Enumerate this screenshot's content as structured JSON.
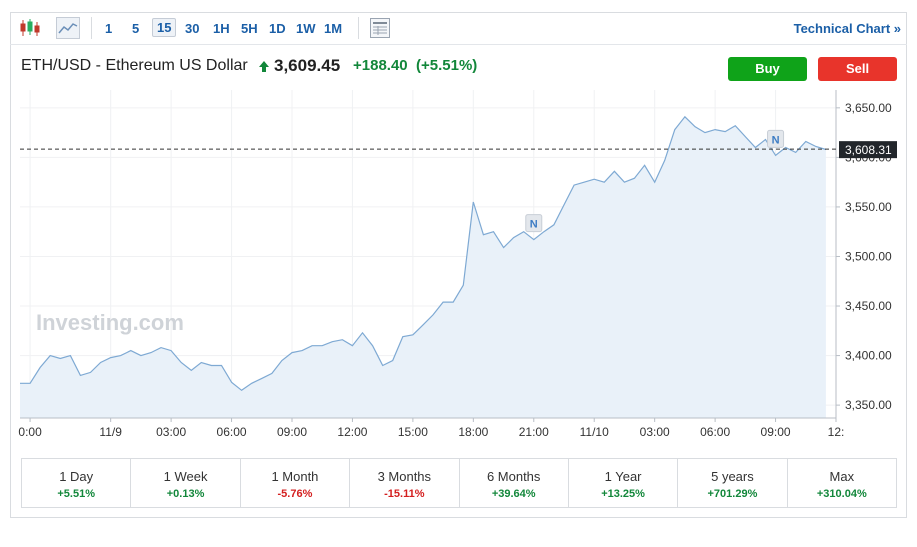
{
  "toolbar": {
    "intervals": [
      "1",
      "5",
      "15",
      "30",
      "1H",
      "5H",
      "1D",
      "1W",
      "1M"
    ],
    "selected": 2,
    "technical_link": "Technical Chart »"
  },
  "header": {
    "title": "ETH/USD - Ethereum US Dollar",
    "price": "3,609.45",
    "change": "+188.40",
    "change_pct": "(+5.51%)",
    "buy": "Buy",
    "sell": "Sell"
  },
  "chart_data": {
    "type": "area",
    "watermark": "Investing.com",
    "x": [
      -0.5,
      0,
      0.5,
      1,
      1.5,
      2,
      2.5,
      3,
      3.5,
      4,
      4.5,
      5,
      5.5,
      6,
      6.5,
      7,
      7.5,
      8,
      8.5,
      9,
      9.5,
      10,
      10.5,
      11,
      11.5,
      12,
      12.5,
      13,
      13.5,
      14,
      14.5,
      15,
      15.5,
      16,
      16.5,
      17,
      17.5,
      18,
      18.5,
      19,
      19.5,
      20,
      20.5,
      21,
      21.5,
      22,
      22.5,
      23,
      23.5,
      24,
      24.5,
      25,
      25.5,
      26,
      26.5,
      27,
      27.5,
      28,
      28.5,
      29,
      29.5,
      30,
      30.5,
      31,
      31.5,
      32,
      32.5,
      33,
      33.5,
      34,
      34.5,
      35,
      35.5,
      36,
      36.5,
      37,
      37.5,
      38,
      38.5,
      39,
      39.5
    ],
    "series": [
      {
        "color": "#7ea9d3",
        "fill": "#e9f1f9",
        "values": [
          3372,
          3372,
          3388,
          3400,
          3397,
          3400,
          3380,
          3383,
          3393,
          3398,
          3400,
          3405,
          3400,
          3403,
          3408,
          3405,
          3393,
          3385,
          3393,
          3390,
          3390,
          3373,
          3365,
          3372,
          3377,
          3382,
          3395,
          3403,
          3405,
          3410,
          3410,
          3414,
          3416,
          3410,
          3423,
          3410,
          3390,
          3395,
          3419,
          3421,
          3431,
          3441,
          3454,
          3454,
          3471,
          3555,
          3522,
          3525,
          3509,
          3519,
          3525,
          3517,
          3525,
          3532,
          3552,
          3572,
          3575,
          3578,
          3575,
          3586,
          3575,
          3579,
          3592,
          3575,
          3597,
          3628,
          3641,
          3631,
          3625,
          3628,
          3626,
          3632,
          3621,
          3610,
          3618,
          3602,
          3610,
          3605,
          3616,
          3611,
          3608
        ]
      }
    ],
    "xlim": [
      -0.5,
      40
    ],
    "ylim": [
      3337,
      3668
    ],
    "xticks": [
      {
        "value": 0,
        "label": "0:00"
      },
      {
        "value": 4,
        "label": "11/9"
      },
      {
        "value": 7,
        "label": "03:00"
      },
      {
        "value": 10,
        "label": "06:00"
      },
      {
        "value": 13,
        "label": "09:00"
      },
      {
        "value": 16,
        "label": "12:00"
      },
      {
        "value": 19,
        "label": "15:00"
      },
      {
        "value": 22,
        "label": "18:00"
      },
      {
        "value": 25,
        "label": "21:00"
      },
      {
        "value": 28,
        "label": "11/10"
      },
      {
        "value": 31,
        "label": "03:00"
      },
      {
        "value": 34,
        "label": "06:00"
      },
      {
        "value": 37,
        "label": "09:00"
      },
      {
        "value": 40,
        "label": "12:"
      }
    ],
    "yticks": [
      {
        "value": 3350,
        "label": "3,350.00"
      },
      {
        "value": 3400,
        "label": "3,400.00"
      },
      {
        "value": 3450,
        "label": "3,450.00"
      },
      {
        "value": 3500,
        "label": "3,500.00"
      },
      {
        "value": 3550,
        "label": "3,550.00"
      },
      {
        "value": 3600,
        "label": "3,600.00"
      },
      {
        "value": 3650,
        "label": "3,650.00"
      }
    ],
    "grid": true,
    "last_price": {
      "value": 3608.31,
      "label": "3,608.31"
    },
    "markers": [
      {
        "x": 25,
        "label": "N"
      },
      {
        "x": 37,
        "label": "N"
      }
    ]
  },
  "periods": [
    {
      "label": "1 Day",
      "change": "+5.51%"
    },
    {
      "label": "1 Week",
      "change": "+0.13%"
    },
    {
      "label": "1 Month",
      "change": "-5.76%"
    },
    {
      "label": "3 Months",
      "change": "-15.11%"
    },
    {
      "label": "6 Months",
      "change": "+39.64%"
    },
    {
      "label": "1 Year",
      "change": "+13.25%"
    },
    {
      "label": "5 years",
      "change": "+701.29%"
    },
    {
      "label": "Max",
      "change": "+310.04%"
    }
  ]
}
